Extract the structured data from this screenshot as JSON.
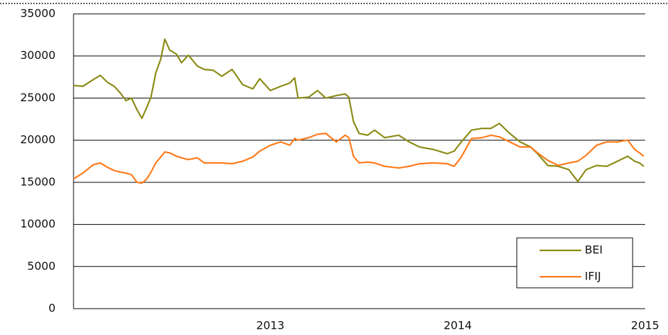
{
  "chart_data": {
    "type": "line",
    "x": [
      2011.95,
      2012.0,
      2012.056,
      2012.093,
      2012.13,
      2012.167,
      2012.204,
      2012.23,
      2012.259,
      2012.289,
      2012.315,
      2012.341,
      2012.363,
      2012.389,
      2012.415,
      2012.437,
      2012.463,
      2012.5,
      2012.526,
      2012.563,
      2012.611,
      2012.648,
      2012.696,
      2012.741,
      2012.796,
      2012.852,
      2012.907,
      2012.944,
      2013.0,
      2013.056,
      2013.104,
      2013.13,
      2013.148,
      2013.204,
      2013.252,
      2013.296,
      2013.352,
      2013.4,
      2013.419,
      2013.444,
      2013.474,
      2013.519,
      2013.556,
      2013.611,
      2013.685,
      2013.741,
      2013.796,
      2013.87,
      2013.944,
      2013.981,
      2014.019,
      2014.074,
      2014.13,
      2014.178,
      2014.222,
      2014.278,
      2014.333,
      2014.389,
      2014.426,
      2014.481,
      2014.537,
      2014.593,
      2014.641,
      2014.685,
      2014.741,
      2014.796,
      2014.852,
      2014.907,
      2014.944,
      2014.97,
      2014.993
    ],
    "series": [
      {
        "name": "BEI",
        "color": "#8b8b16",
        "values": [
          26500,
          26400,
          27200,
          27700,
          26900,
          26400,
          25500,
          24700,
          25000,
          23600,
          22600,
          23900,
          25100,
          28000,
          29600,
          32000,
          30700,
          30200,
          29200,
          30100,
          28800,
          28400,
          28300,
          27600,
          28400,
          26600,
          26100,
          27300,
          25900,
          26400,
          26800,
          27400,
          25000,
          25100,
          25900,
          25000,
          25300,
          25500,
          25100,
          22200,
          20800,
          20600,
          21200,
          20300,
          20600,
          19800,
          19200,
          18900,
          18400,
          18700,
          19800,
          21200,
          21400,
          21400,
          22000,
          20800,
          19800,
          19200,
          18400,
          17000,
          16900,
          16500,
          15100,
          16500,
          17000,
          16900,
          17500,
          18100,
          17500,
          17300,
          16900
        ]
      },
      {
        "name": "IFIJ",
        "color": "#ff7a1a",
        "values": [
          15400,
          16100,
          17100,
          17300,
          16800,
          16400,
          16200,
          16100,
          15900,
          15000,
          14900,
          15400,
          16200,
          17300,
          18000,
          18600,
          18500,
          18100,
          17900,
          17700,
          17900,
          17300,
          17300,
          17300,
          17200,
          17500,
          18000,
          18700,
          19400,
          19800,
          19400,
          20200,
          20000,
          20300,
          20700,
          20800,
          19800,
          20600,
          20300,
          18100,
          17300,
          17400,
          17300,
          16900,
          16700,
          16900,
          17200,
          17300,
          17200,
          16900,
          18000,
          20200,
          20300,
          20600,
          20400,
          19800,
          19200,
          19200,
          18500,
          17600,
          17000,
          17300,
          17500,
          18200,
          19400,
          19800,
          19800,
          20000,
          18900,
          18500,
          18100
        ]
      }
    ],
    "xlim": [
      2011.95,
      2015
    ],
    "xticks": [
      2013,
      2014,
      2015
    ],
    "ylim": [
      0,
      35000
    ],
    "yticks": [
      0,
      5000,
      10000,
      15000,
      20000,
      25000,
      30000,
      35000
    ],
    "grid": true,
    "legend": "lower right"
  }
}
